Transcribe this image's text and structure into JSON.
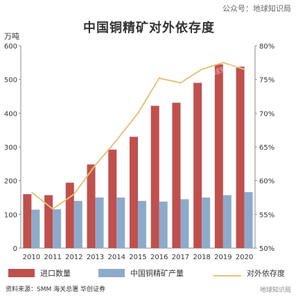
{
  "header": {
    "account": "公众号：地球知识局",
    "title": "中国铜精矿对外依存度"
  },
  "chart_data": {
    "type": "bar",
    "title": "中国铜精矿对外依存度",
    "left_unit": "万吨",
    "categories": [
      "2010",
      "2011",
      "2012",
      "2013",
      "2014",
      "2015",
      "2016",
      "2017",
      "2018",
      "2019",
      "2020"
    ],
    "series": [
      {
        "name": "进口数量",
        "type": "bar",
        "axis": "left",
        "color": "#c0504d",
        "values": [
          160,
          157,
          194,
          248,
          292,
          330,
          422,
          431,
          490,
          545,
          538
        ]
      },
      {
        "name": "中国铜精矿产量",
        "type": "bar",
        "axis": "left",
        "color": "#8eaacb",
        "values": [
          114,
          115,
          140,
          150,
          150,
          140,
          138,
          145,
          150,
          157,
          166
        ]
      },
      {
        "name": "对外依存度",
        "type": "line",
        "axis": "right",
        "color": "#e6c27a",
        "values": [
          58.3,
          55.8,
          58.0,
          62.3,
          66.0,
          70.0,
          75.2,
          74.5,
          76.5,
          77.5,
          76.5
        ]
      }
    ],
    "left_axis": {
      "min": 0,
      "max": 600,
      "ticks": [
        "0",
        "100",
        "200",
        "300",
        "400",
        "500",
        "600"
      ]
    },
    "right_axis": {
      "min": 50,
      "max": 80,
      "ticks": [
        "50%",
        "55%",
        "60%",
        "65%",
        "70%",
        "75%",
        "80%"
      ]
    },
    "grid": false,
    "legend": "bottom"
  },
  "watermark": "地球知识局",
  "source": "资料来源：SMM 海关总署 华创证券",
  "corner_watermark": "地球知识局"
}
